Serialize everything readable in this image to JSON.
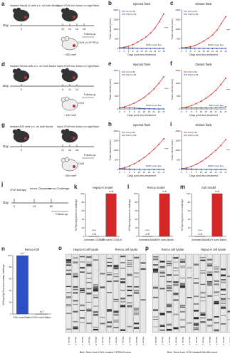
{
  "diagrams": [
    {
      "label": "a",
      "texts": [
        "Implant Hepa1-6 cells s.c. on both flanks",
        "Inject OVH into tumor on right flank",
        "Day",
        "OVH (×10⁸ PFU)",
        "~250 mm³",
        "Follow-up"
      ],
      "days": [
        "0",
        "10",
        "12",
        "13",
        "16"
      ]
    },
    {
      "label": "d",
      "texts": [
        "Implant Renca cells s.c. on both flanks",
        "Inject OVH into tumor on right flank",
        "Day",
        "OVH",
        "~100 mm³",
        "Follow-up"
      ],
      "days": [
        "0",
        "9",
        "11",
        "14"
      ]
    },
    {
      "label": "g",
      "texts": [
        "Implant A20 cells s.c. on both flanks",
        "Inject OVH into tumor on right flank",
        "Day",
        "OVH",
        "~250 mm³",
        "Follow-up"
      ],
      "days": [
        "0",
        "12",
        "13",
        "16"
      ]
    },
    {
      "label": "j",
      "texts": [
        "OVH therapy",
        "tumor Clearance",
        "tumor Challenge",
        "Day",
        "Follow-up"
      ],
      "days": [
        "0",
        "13",
        "80"
      ]
    }
  ],
  "chart_data": [
    {
      "type": "line",
      "label": "b",
      "title": "Injected flank",
      "x_label": "Days post virus treatment",
      "y_label": "Tumor volume (mm³)",
      "annotations": [
        "100% tumor free",
        "****"
      ],
      "x": [
        0,
        3,
        6,
        9,
        12,
        15,
        18,
        21,
        24,
        27,
        30
      ],
      "xlim": [
        0,
        30
      ],
      "xticks": [
        0,
        3,
        6,
        9,
        12,
        15,
        18,
        21,
        24,
        27,
        30
      ],
      "ylim": [
        0,
        2000
      ],
      "yticks": [
        0,
        500,
        1000,
        1500,
        2000
      ],
      "series": [
        {
          "name": "Ctrl (n=8)",
          "color": "#d62728",
          "values": [
            30,
            60,
            120,
            200,
            320,
            450,
            600,
            800,
            1050,
            1400,
            1800
          ]
        },
        {
          "name": "OVH (n=8)",
          "color": "#3050c0",
          "values": [
            30,
            40,
            30,
            20,
            10,
            5,
            0,
            0,
            0,
            0,
            0
          ]
        }
      ]
    },
    {
      "type": "line",
      "label": "c",
      "title": "Distant flank",
      "x_label": "Days post virus treatment",
      "y_label": "Tumor volume (mm³)",
      "annotations": [
        "100% tumor free",
        "****"
      ],
      "x": [
        0,
        3,
        6,
        9,
        12,
        15,
        18,
        21,
        24,
        27,
        30
      ],
      "xlim": [
        0,
        30
      ],
      "xticks": [
        0,
        3,
        6,
        9,
        12,
        15,
        18,
        21,
        24,
        27,
        30
      ],
      "ylim": [
        0,
        2000
      ],
      "yticks": [
        0,
        500,
        1000,
        1500,
        2000
      ],
      "series": [
        {
          "name": "Ctrl (n=8)",
          "color": "#d62728",
          "values": [
            30,
            50,
            90,
            150,
            250,
            380,
            520,
            700,
            950,
            1300,
            1650
          ]
        },
        {
          "name": "OVH (n=8)",
          "color": "#3050c0",
          "values": [
            30,
            30,
            25,
            15,
            10,
            5,
            0,
            0,
            0,
            0,
            0
          ]
        }
      ]
    },
    {
      "type": "line",
      "label": "e",
      "title": "Injected flank",
      "x_label": "Days post virus treatment",
      "y_label": "Tumor volume (mm³)",
      "annotations": [
        "100% tumor free",
        "****"
      ],
      "x": [
        0,
        3,
        6,
        9,
        12,
        15,
        18,
        21,
        24,
        27
      ],
      "xlim": [
        0,
        27
      ],
      "xticks": [
        0,
        3,
        6,
        9,
        12,
        15,
        18,
        21,
        24,
        27
      ],
      "ylim": [
        0,
        1500
      ],
      "yticks": [
        0,
        500,
        1000,
        1500
      ],
      "series": [
        {
          "name": "Ctrl (n=8)",
          "color": "#d62728",
          "values": [
            40,
            80,
            150,
            230,
            330,
            450,
            600,
            780,
            1000,
            1250
          ]
        },
        {
          "name": "OVH (n=8)",
          "color": "#3050c0",
          "values": [
            40,
            50,
            45,
            35,
            25,
            15,
            10,
            5,
            0,
            0
          ]
        }
      ]
    },
    {
      "type": "line",
      "label": "f",
      "title": "Distant flank",
      "x_label": "Days post virus treatment",
      "y_label": "Tumor volume (mm³)",
      "annotations": [
        "80% tumor free",
        "****"
      ],
      "x": [
        0,
        3,
        6,
        9,
        12,
        15,
        18,
        21,
        24,
        27
      ],
      "xlim": [
        0,
        27
      ],
      "xticks": [
        0,
        3,
        6,
        9,
        12,
        15,
        18,
        21,
        24,
        27
      ],
      "ylim": [
        0,
        1500
      ],
      "yticks": [
        0,
        500,
        1000,
        1500
      ],
      "series": [
        {
          "name": "Ctrl (n=8)",
          "color": "#d62728",
          "values": [
            40,
            70,
            130,
            210,
            300,
            420,
            560,
            730,
            950,
            1200
          ]
        },
        {
          "name": "OVH (n=8)",
          "color": "#3050c0",
          "values": [
            40,
            45,
            45,
            40,
            40,
            45,
            50,
            60,
            70,
            80
          ]
        }
      ]
    },
    {
      "type": "line",
      "label": "h",
      "title": "Injected flank",
      "x_label": "Days post virus treatment",
      "y_label": "Tumor volume (mm³)",
      "annotations": [
        "100% tumor free",
        "****"
      ],
      "x": [
        0,
        3,
        6,
        9,
        12,
        15,
        18,
        21,
        24,
        27
      ],
      "xlim": [
        0,
        27
      ],
      "xticks": [
        0,
        3,
        6,
        9,
        12,
        15,
        18,
        21,
        24,
        27
      ],
      "ylim": [
        0,
        2000
      ],
      "yticks": [
        0,
        500,
        1000,
        1500,
        2000
      ],
      "series": [
        {
          "name": "Ctrl (n=8)",
          "color": "#d62728",
          "values": [
            40,
            90,
            180,
            300,
            450,
            620,
            820,
            1050,
            1300,
            1600
          ]
        },
        {
          "name": "OVH (n=8)",
          "color": "#3050c0",
          "values": [
            40,
            35,
            25,
            15,
            5,
            0,
            0,
            0,
            0,
            0
          ]
        }
      ]
    },
    {
      "type": "line",
      "label": "i",
      "title": "Distant flank",
      "x_label": "Days post virus treatment",
      "y_label": "Tumor volume (mm³)",
      "annotations": [
        "100% tumor free",
        "****"
      ],
      "x": [
        0,
        3,
        6,
        9,
        12,
        15,
        18,
        21,
        24,
        27
      ],
      "xlim": [
        0,
        27
      ],
      "xticks": [
        0,
        3,
        6,
        9,
        12,
        15,
        18,
        21,
        24,
        27
      ],
      "ylim": [
        0,
        2000
      ],
      "yticks": [
        0,
        500,
        1000,
        1500,
        2000
      ],
      "series": [
        {
          "name": "Ctrl (n=8)",
          "color": "#d62728",
          "values": [
            40,
            80,
            160,
            270,
            410,
            580,
            780,
            1000,
            1250,
            1550
          ]
        },
        {
          "name": "OVH (n=8)",
          "color": "#3050c0",
          "values": [
            40,
            35,
            25,
            15,
            5,
            0,
            0,
            0,
            0,
            0
          ]
        }
      ]
    },
    {
      "type": "bar",
      "label": "k",
      "title": "Hepa1-6 model",
      "y_label": "% Rejecting tumor re-challenge",
      "annotations": [
        "n=8",
        "n=8",
        "****"
      ],
      "categories": [
        "Untreated C57BL/6",
        "OVH cured C57BL/6"
      ],
      "values": [
        0,
        100
      ],
      "color": "#d62728",
      "ylim": [
        0,
        100
      ],
      "yticks": [
        0,
        20,
        40,
        60,
        80,
        100
      ]
    },
    {
      "type": "bar",
      "label": "l",
      "title": "Renca model",
      "y_label": "% Rejecting tumor re-challenge",
      "annotations": [
        "n=8",
        "n=8",
        "****"
      ],
      "categories": [
        "Untreated Balb/c",
        "OVH cured Balb/c"
      ],
      "values": [
        0,
        100
      ],
      "color": "#d62728",
      "ylim": [
        0,
        100
      ],
      "yticks": [
        0,
        20,
        40,
        60,
        80,
        100
      ]
    },
    {
      "type": "bar",
      "label": "m",
      "title": "A20 model",
      "y_label": "% Rejecting tumor re-challenge",
      "annotations": [
        "n=8",
        "n=8",
        "****"
      ],
      "categories": [
        "Untreated Balb/c",
        "OVH cured Balb/c"
      ],
      "values": [
        0,
        100
      ],
      "color": "#d62728",
      "ylim": [
        0,
        100
      ],
      "yticks": [
        0,
        20,
        40,
        60,
        80,
        100
      ]
    },
    {
      "type": "bar",
      "label": "n",
      "title": "Renca     A20",
      "y_label": "% Rejecting Renca secondary challenge",
      "annotations": [
        "n=7",
        "n=7",
        "****"
      ],
      "categories": [
        "OVH cured Balb/c",
        "OVH cured Balb/c"
      ],
      "values": [
        100,
        0
      ],
      "color": "#2f4fc8",
      "ylim": [
        0,
        100
      ],
      "yticks": [
        0,
        20,
        40,
        60,
        80,
        100
      ]
    }
  ],
  "blots": [
    {
      "label": "o",
      "headers": [
        "Hepa1-6 cell lysate",
        "Renca cell lysate"
      ],
      "lanes": [
        "Mouse 1",
        "Mouse 2",
        "Mouse 3",
        "Mouse 4",
        "Mouse 5",
        "Mouse 6",
        "Mouse 1",
        "Mouse 2",
        "Mouse 3",
        "Mouse 4",
        "Mouse 5",
        "Mouse 6"
      ],
      "footer": "Blot: Sera from OVH treated C57BL/6 mice"
    },
    {
      "label": "p",
      "headers": [
        "Renca cell lysate",
        "Hepa1-6 cell lysate"
      ],
      "lanes": [
        "Mouse 1",
        "Mouse 2",
        "Mouse 3",
        "Mouse 4",
        "Mouse 5",
        "Mouse 6",
        "Mouse 1",
        "Mouse 2",
        "Mouse 3",
        "Mouse 4",
        "Mouse 5",
        "Mouse 6"
      ],
      "footer": "Blot: Sera from OVH treated BALB/c mice"
    }
  ]
}
